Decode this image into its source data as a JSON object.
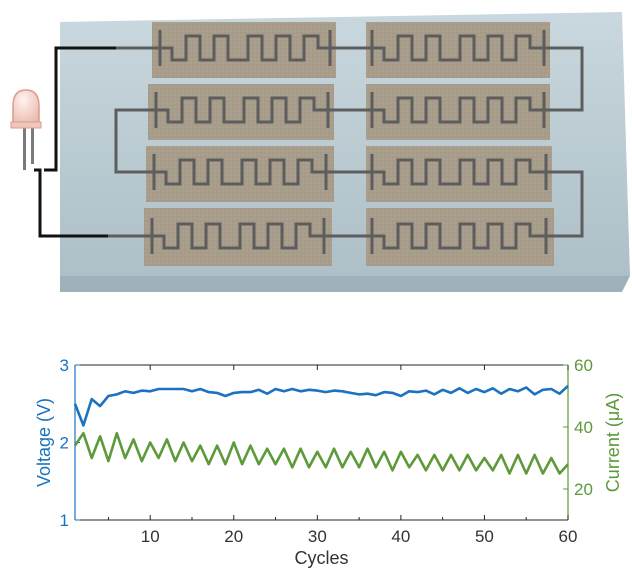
{
  "colors": {
    "voltage": "#1a72c0",
    "current": "#5c9a3a",
    "substrate": "#b9cbd3",
    "pad": "#a89d8b",
    "trace": "#5d5d5d",
    "wire": "#111111"
  },
  "figure": {
    "illustration": {
      "components": [
        "led-icon",
        "glass-substrate",
        "interdigitated-electrode-pads",
        "connecting-wires"
      ],
      "pad_count": 8
    }
  },
  "chart_data": {
    "type": "line",
    "xlabel": "Cycles",
    "ylabel_left": "Voltage (V)",
    "ylabel_right": "Current (μA)",
    "xlim": [
      1,
      60
    ],
    "ylim_left": [
      1,
      3
    ],
    "ylim_right": [
      10,
      60
    ],
    "x_ticks": [
      10,
      20,
      30,
      40,
      50,
      60
    ],
    "y_left_ticks": [
      1,
      2,
      3
    ],
    "y_right_ticks": [
      20,
      40,
      60
    ],
    "grid": false,
    "series": [
      {
        "name": "Voltage (V)",
        "axis": "left",
        "x": [
          1,
          2,
          3,
          4,
          5,
          6,
          7,
          8,
          9,
          10,
          11,
          12,
          13,
          14,
          15,
          16,
          17,
          18,
          19,
          20,
          21,
          22,
          23,
          24,
          25,
          26,
          27,
          28,
          29,
          30,
          31,
          32,
          33,
          34,
          35,
          36,
          37,
          38,
          39,
          40,
          41,
          42,
          43,
          44,
          45,
          46,
          47,
          48,
          49,
          50,
          51,
          52,
          53,
          54,
          55,
          56,
          57,
          58,
          59,
          60
        ],
        "values": [
          2.5,
          2.22,
          2.56,
          2.47,
          2.6,
          2.62,
          2.66,
          2.64,
          2.67,
          2.66,
          2.69,
          2.69,
          2.69,
          2.69,
          2.66,
          2.69,
          2.65,
          2.64,
          2.6,
          2.64,
          2.65,
          2.65,
          2.68,
          2.63,
          2.69,
          2.66,
          2.69,
          2.66,
          2.68,
          2.67,
          2.65,
          2.67,
          2.66,
          2.64,
          2.62,
          2.63,
          2.61,
          2.65,
          2.64,
          2.6,
          2.66,
          2.65,
          2.67,
          2.62,
          2.68,
          2.64,
          2.7,
          2.64,
          2.69,
          2.65,
          2.7,
          2.63,
          2.69,
          2.66,
          2.71,
          2.62,
          2.68,
          2.69,
          2.63,
          2.73
        ]
      },
      {
        "name": "Current (μA)",
        "axis": "right",
        "x": [
          1,
          2,
          3,
          4,
          5,
          6,
          7,
          8,
          9,
          10,
          11,
          12,
          13,
          14,
          15,
          16,
          17,
          18,
          19,
          20,
          21,
          22,
          23,
          24,
          25,
          26,
          27,
          28,
          29,
          30,
          31,
          32,
          33,
          34,
          35,
          36,
          37,
          38,
          39,
          40,
          41,
          42,
          43,
          44,
          45,
          46,
          47,
          48,
          49,
          50,
          51,
          52,
          53,
          54,
          55,
          56,
          57,
          58,
          59,
          60
        ],
        "values": [
          34,
          38,
          30,
          37,
          29,
          38,
          30,
          36,
          29,
          35,
          30,
          36,
          29,
          35,
          29,
          34,
          28,
          34,
          28,
          35,
          28,
          34,
          28,
          33,
          28,
          33,
          27,
          33,
          27,
          32,
          27,
          33,
          27,
          32,
          27,
          33,
          27,
          32,
          26,
          32,
          27,
          31,
          26,
          31,
          26,
          31,
          26,
          31,
          26,
          30,
          26,
          31,
          25,
          31,
          25,
          31,
          25,
          30,
          25,
          28
        ]
      }
    ]
  }
}
